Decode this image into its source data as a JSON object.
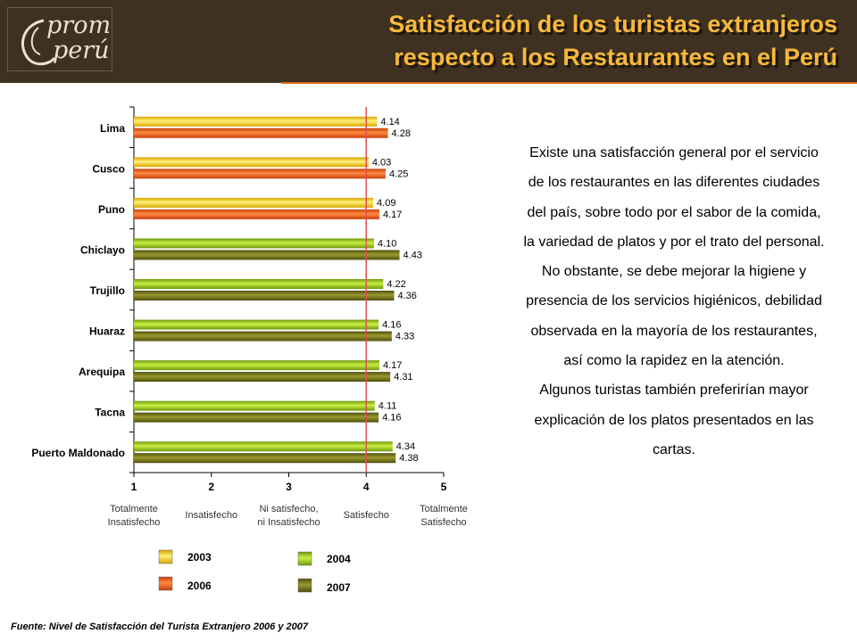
{
  "header": {
    "logo_line1": "prom",
    "logo_line2": "perú",
    "title_line1": "Satisfacción de los turistas extranjeros",
    "title_line2": "respecto a los Restaurantes en el Perú"
  },
  "chart_data": {
    "type": "bar",
    "orientation": "horizontal",
    "categories": [
      "Lima",
      "Cusco",
      "Puno",
      "Chiclayo",
      "Trujillo",
      "Huaraz",
      "Arequipa",
      "Tacna",
      "Puerto Maldonado"
    ],
    "series_pairs": [
      {
        "first": "2003",
        "second": "2006"
      },
      {
        "first": "2003",
        "second": "2006"
      },
      {
        "first": "2003",
        "second": "2006"
      },
      {
        "first": "2004",
        "second": "2007"
      },
      {
        "first": "2004",
        "second": "2007"
      },
      {
        "first": "2004",
        "second": "2007"
      },
      {
        "first": "2004",
        "second": "2007"
      },
      {
        "first": "2004",
        "second": "2007"
      },
      {
        "first": "2004",
        "second": "2007"
      }
    ],
    "values_first": [
      4.14,
      4.03,
      4.09,
      4.1,
      4.22,
      4.16,
      4.17,
      4.11,
      4.34
    ],
    "values_second": [
      4.28,
      4.25,
      4.17,
      4.43,
      4.36,
      4.33,
      4.31,
      4.16,
      4.38
    ],
    "labels_first": [
      "4.14",
      "4.03",
      "4.09",
      "4.10",
      "4.22",
      "4.16",
      "4.17",
      "4.11",
      "4.34"
    ],
    "labels_second": [
      "4.28",
      "4.25",
      "4.17",
      "4.43",
      "4.36",
      "4.33",
      "4.31",
      "4.16",
      "4.38"
    ],
    "xlim": [
      1,
      5
    ],
    "xticks": [
      "1",
      "2",
      "3",
      "4",
      "5"
    ],
    "reference_line": 4,
    "scale_labels": [
      [
        "Totalmente",
        "Insatisfecho"
      ],
      [
        "Insatisfecho"
      ],
      [
        "Ni satisfecho,",
        "ni Insatisfecho"
      ],
      [
        "Satisfecho"
      ],
      [
        "Totalmente",
        "Satisfecho"
      ]
    ],
    "legend": [
      {
        "name": "2003",
        "color": "#f2c200"
      },
      {
        "name": "2006",
        "color": "#e8541a"
      },
      {
        "name": "2004",
        "color": "#8fbf1a"
      },
      {
        "name": "2007",
        "color": "#6b6b1a"
      }
    ],
    "colors": {
      "2003": "#f2c200",
      "2006": "#e8541a",
      "2004": "#8fbf1a",
      "2007": "#6b6b1a",
      "reference": "#e05050"
    }
  },
  "side_text": [
    "Existe una satisfacción general por el servicio de los restaurantes en las diferentes ciudades del país, sobre todo por el sabor de la comida, la variedad de platos y por el trato del personal.",
    "No obstante, se debe mejorar la higiene y presencia de los servicios higiénicos, debilidad observada en la mayoría de los restaurantes, así como la rapidez en la atención.",
    "Algunos turistas también preferirían mayor explicación de los platos presentados en las cartas."
  ],
  "footnote": "Fuente: Nivel de Satisfacción del Turista Extranjero 2006 y 2007"
}
